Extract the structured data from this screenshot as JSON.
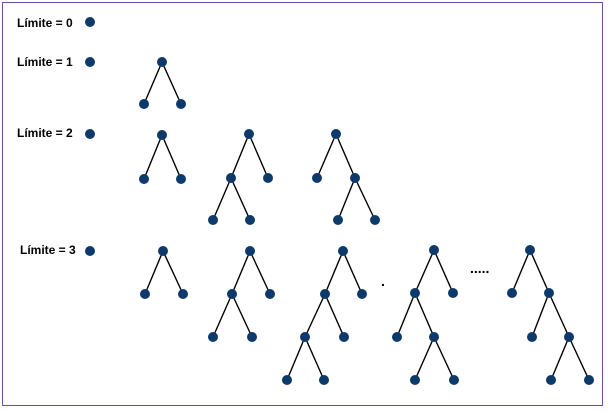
{
  "colors": {
    "node": "#0d3a6b",
    "edge": "#000000",
    "border": "#6f4aa8"
  },
  "levels": [
    {
      "label": "Límite = 0"
    },
    {
      "label": "Límite = 1"
    },
    {
      "label": "Límite = 2"
    },
    {
      "label": "Límite = 3"
    }
  ],
  "ellipsis_small": ".",
  "ellipsis_large": "....."
}
